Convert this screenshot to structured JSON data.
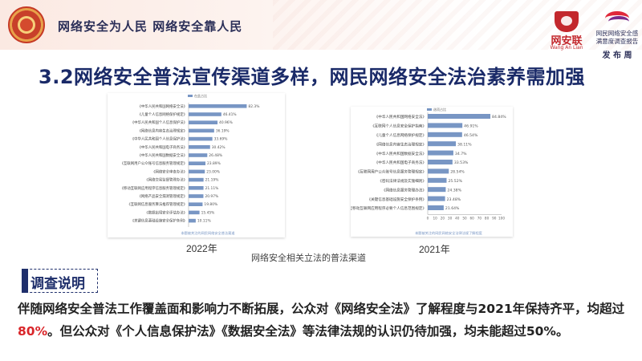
{
  "header": {
    "slogan": "网络安全为人民 网络安全靠人民",
    "logo_wal_name": "网安联",
    "logo_wal_sub": "Wang An Lian",
    "logo_pub_line1": "网民网络安全感",
    "logo_pub_line2": "满意度调查报告",
    "logo_pub_line3": "发 布 周"
  },
  "title": "3.2网络安全普法宣传渠道多样，网民网络安全法治素养需加强",
  "chart_data": [
    {
      "type": "bar",
      "orientation": "horizontal",
      "year": "2022年",
      "legend": "在此占比",
      "footnote": "本题被关注的网民网络安全普法渠道",
      "categories": [
        "《中华人民共和国网络安全法》",
        "《儿童个人信息网络保护规定》",
        "《中华人民共和国个人信息保护法》",
        "《网络信息内容生态治理规定》",
        "《中华人民共和国个人信息保护法》",
        "《中华人民共和国电子商务法》",
        "《中华人民共和国数据安全法》",
        "《互联网用户公众账号信息服务管理规定》",
        "《网络安全审查办法》",
        "《网络交易监督管理办法》",
        "《移动互联网应用程序信息服务管理规定》",
        "《网络产品安全漏洞管理规定》",
        "《互联网信息服务算法推荐管理规定》",
        "《数据出境安全评估办法》",
        "《关键信息基础设施安全保护条例》"
      ],
      "values": [
        82.3,
        46.41,
        40.96,
        36.19,
        33.69,
        30.42,
        26.48,
        23.89,
        23.0,
        21.19,
        21.11,
        20.97,
        19.8,
        15.45,
        10.11
      ],
      "value_labels": [
        "82.3%",
        "46.41%",
        "40.96%",
        "36.19%",
        "33.69%",
        "30.42%",
        "26.48%",
        "23.89%",
        "23.00%",
        "21.19%",
        "21.11%",
        "20.97%",
        "19.80%",
        "15.45%",
        "10.11%"
      ],
      "xlim": [
        0,
        100
      ],
      "tick_labels": []
    },
    {
      "type": "bar",
      "orientation": "horizontal",
      "year": "2021年",
      "legend": "选项占比",
      "footnote": "本题被关注的网民网络安全法律法规了解程度",
      "categories": [
        "《中华人民共和国网络安全法》",
        "《互联网个人信息安全保护指南》",
        "《儿童个人信息网络保护规定》",
        "《网络信息内容生态治理规定》",
        "《中华人民共和国数据安全法》",
        "《中华人民共和国电子商务法》",
        "《互联网用户公众账号信息服务管理规定》",
        "《密码法律法规及实施细则》",
        "《网络信息服务管理办法》",
        "《关键信息基础设施安全保护条例》",
        "《常见类型移动互联网应用程序必要个人信息范围规定》"
      ],
      "values": [
        84.84,
        46.91,
        46.54,
        38.11,
        34.7,
        33.53,
        28.54,
        25.52,
        24.38,
        23.48,
        21.64
      ],
      "value_labels": [
        "84.84%",
        "46.91%",
        "46.54%",
        "38.11%",
        "34.7%",
        "33.53%",
        "28.54%",
        "25.52%",
        "24.38%",
        "23.48%",
        "21.64%"
      ],
      "xlim": [
        0,
        100
      ],
      "tick_labels": [
        "0",
        "10",
        "20",
        "30",
        "40",
        "50",
        "60",
        "70",
        "80",
        "90",
        "100"
      ]
    }
  ],
  "caption": "网络安全相关立法的普法渠道",
  "section_label": "调查说明",
  "description": {
    "part1": "伴随网络安全普法工作覆盖面和影响力不断拓展，公众对《网络安全法》了解程度与2021年保持齐平，均超过",
    "highlight": "80%",
    "part2": "。但公众对《个人信息保护法》《数据安全法》等法律法规的认识仍待加强，均未能超过50%。"
  },
  "colors": {
    "bar": "#7896c4",
    "title": "#1a2a68",
    "accent_red": "#d9262a",
    "navy": "#1f2f6b"
  }
}
